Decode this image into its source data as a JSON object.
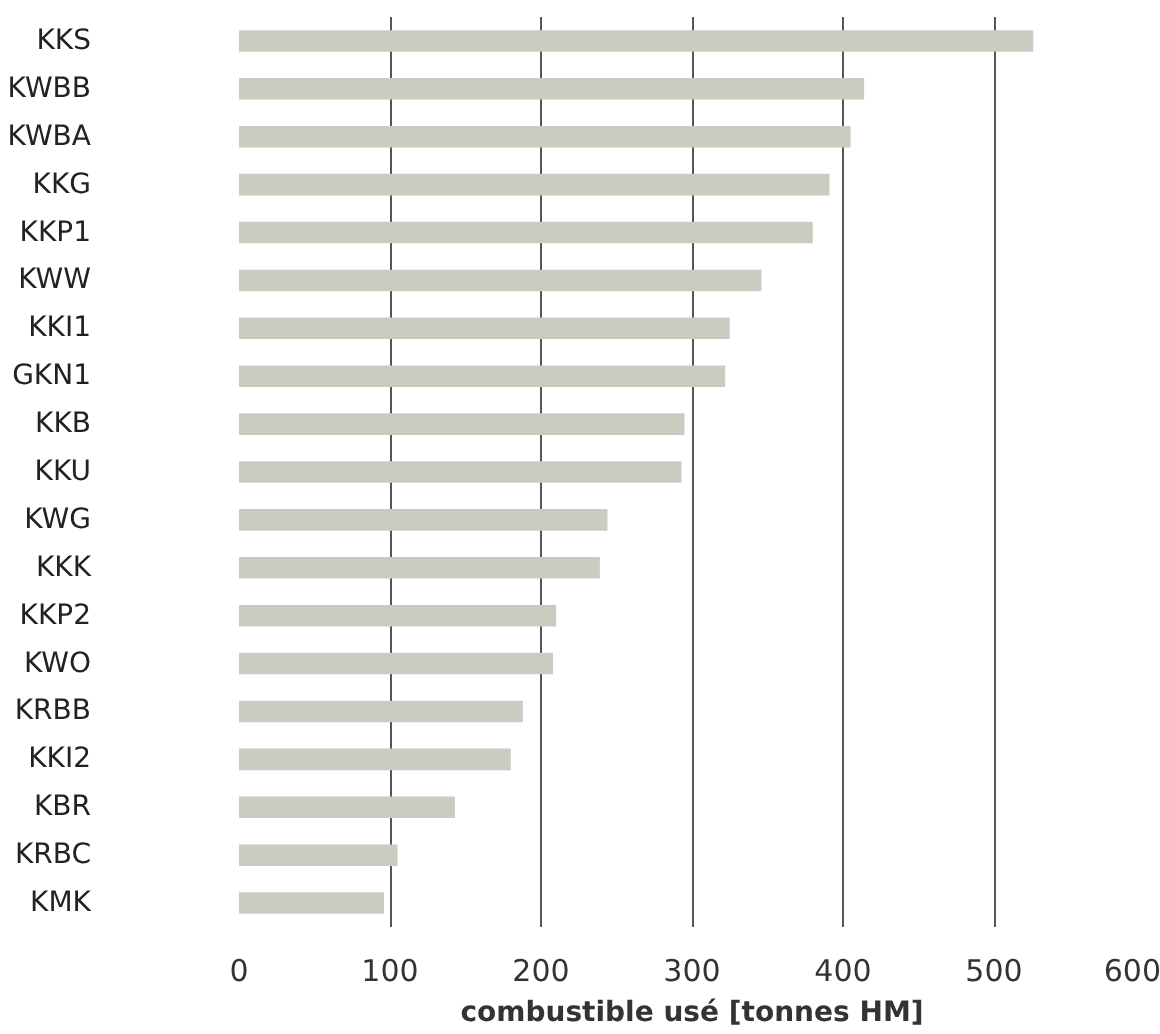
{
  "chart_data": {
    "type": "bar",
    "orientation": "horizontal",
    "xlabel": "combustible usé [tonnes HM]",
    "categories": [
      "KKS",
      "KWBB",
      "KWBA",
      "KKG",
      "KKP1",
      "KWW",
      "KKI1",
      "GKN1",
      "KKB",
      "KKU",
      "KWG",
      "KKK",
      "KKP2",
      "KWO",
      "KRBB",
      "KKI2",
      "KBR",
      "KRBC",
      "KMK"
    ],
    "values": [
      526,
      414,
      405,
      391,
      380,
      346,
      325,
      322,
      295,
      293,
      244,
      239,
      210,
      208,
      188,
      180,
      143,
      105,
      96
    ],
    "color": "#cccbc2",
    "xlim": [
      0,
      600
    ],
    "xticks": [
      0,
      100,
      200,
      300,
      400,
      500,
      600
    ],
    "grid": "x"
  }
}
